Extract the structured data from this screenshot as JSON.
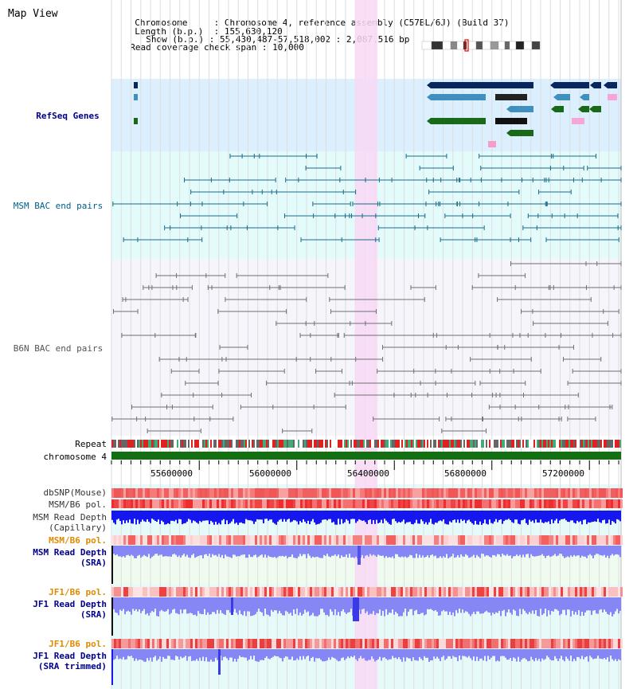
{
  "app": {
    "title": "Map View"
  },
  "header": {
    "chromosome_key": "Chromosome",
    "chromosome_val": "Chromosome 4, reference assembly (C57BL/6J) (Build 37)",
    "length_key": "Length (b.p.)",
    "length_val": "155,630,120",
    "show_key": "Show (b.p.)",
    "show_val": "55,430,487-57,518,002 : 2,087,516 bp",
    "span_key": "Read coverage check span",
    "span_val": "10,000"
  },
  "tracks": {
    "refseq": "RefSeq Genes",
    "msm_bac": "MSM BAC end pairs",
    "b6n_bac": "B6N BAC end pairs",
    "repeat": "Repeat",
    "chromosome": "chromosome 4",
    "dbsnp": "dbSNP(Mouse)",
    "msm_b6_pol_1": "MSM/B6 pol.",
    "msm_read_depth_cap_1": "MSM Read Depth",
    "msm_read_depth_cap_2": "(Capillary)",
    "msm_b6_pol_2": "MSM/B6 pol.",
    "msm_read_depth_sra_1": "MSM Read Depth",
    "msm_read_depth_sra_2": "(SRA)",
    "jf1_b6_pol_1": "JF1/B6 pol.",
    "jf1_read_depth_sra_1": "JF1 Read Depth",
    "jf1_read_depth_sra_2": "(SRA)",
    "jf1_b6_pol_2": "JF1/B6 pol.",
    "jf1_read_depth_trim_1": "JF1 Read Depth",
    "jf1_read_depth_trim_2": "(SRA trimmed)"
  },
  "axis": {
    "ticks": [
      "55600000",
      "56000000",
      "56400000",
      "56800000",
      "57200000"
    ]
  },
  "colors": {
    "refseq_bg": "#dcefff",
    "msm_bg": "#e4fbfb",
    "b6n_bg": "#f5f5fb",
    "lower_bg": "#e6fafa",
    "highlight": "#f8d8f4",
    "gene_dark": "#08275e",
    "gene_mid": "#3f8fbf",
    "gene_green": "#186a18",
    "msm_pair": "#1a6a8a",
    "b6n_pair": "#707070",
    "chrom_green": "#127012",
    "depth_blue": "#1616ee",
    "depth_light": "#8686f5",
    "label_blue": "#00008b",
    "label_orange": "#e08a00"
  }
}
